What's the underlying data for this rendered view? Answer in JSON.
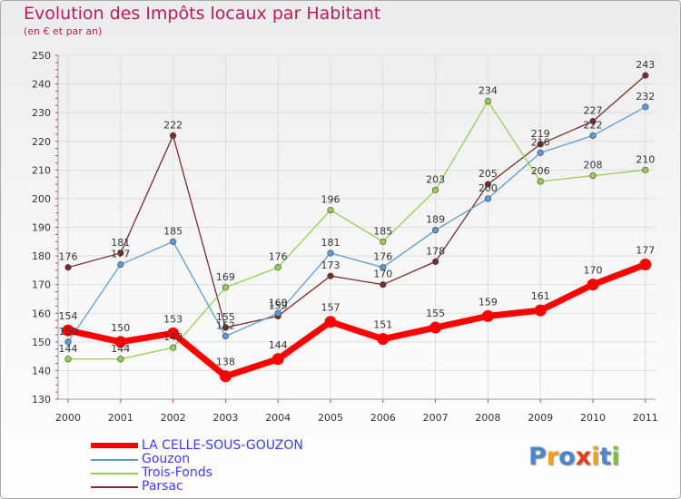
{
  "header": {
    "title": "Evolution des Impôts locaux par Habitant",
    "subtitle": "(en € et par an)"
  },
  "chart_data": {
    "type": "line",
    "title": "Evolution des Impôts locaux par Habitant",
    "subtitle": "(en € et par an)",
    "xlabel": "",
    "ylabel": "",
    "categories": [
      "2000",
      "2001",
      "2002",
      "2003",
      "2004",
      "2005",
      "2006",
      "2007",
      "2008",
      "2009",
      "2010",
      "2011"
    ],
    "ylim": [
      130,
      250
    ],
    "yticks": [
      130,
      140,
      150,
      160,
      170,
      180,
      190,
      200,
      210,
      220,
      230,
      240,
      250
    ],
    "grid": true,
    "legend_position": "bottom-left",
    "series": [
      {
        "name": "LA CELLE-SOUS-GOUZON",
        "color": "#ff0000",
        "values": [
          154,
          150,
          153,
          138,
          144,
          157,
          151,
          155,
          159,
          161,
          170,
          177
        ]
      },
      {
        "name": "Gouzon",
        "color": "#5b9bd5",
        "values": [
          150,
          177,
          185,
          152,
          160,
          181,
          176,
          189,
          200,
          216,
          222,
          232
        ]
      },
      {
        "name": "Trois-Fonds",
        "color": "#92d050",
        "values": [
          144,
          144,
          148,
          169,
          176,
          196,
          185,
          203,
          234,
          206,
          208,
          210
        ]
      },
      {
        "name": "Parsac",
        "color": "#7b2c2c",
        "values": [
          176,
          181,
          222,
          155,
          159,
          173,
          170,
          178,
          205,
          219,
          227,
          243
        ]
      }
    ]
  },
  "logo": {
    "letters": [
      "P",
      "r",
      "o",
      "x",
      "i",
      "t",
      "i"
    ],
    "colors": [
      "#4a86c8",
      "#f0a020",
      "#4a86c8",
      "#e04020",
      "#f0a020",
      "#4a86c8",
      "#7cc040"
    ]
  }
}
